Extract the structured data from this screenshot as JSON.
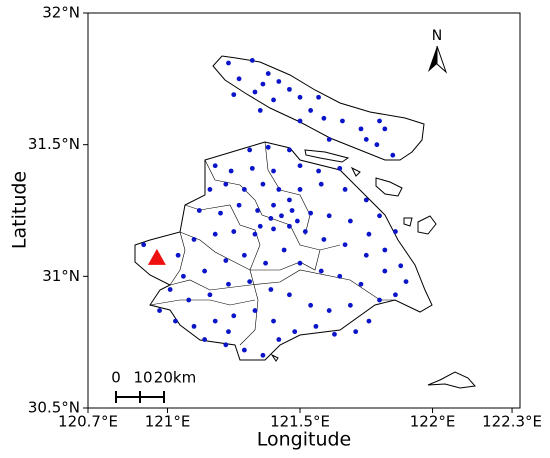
{
  "chart_data": {
    "type": "scatter",
    "xlabel": "Longitude",
    "ylabel": "Latitude",
    "xlim": [
      120.7,
      122.33
    ],
    "ylim": [
      30.5,
      32.0
    ],
    "xticks": [
      {
        "value": 120.7,
        "label": "120.7°E"
      },
      {
        "value": 121.0,
        "label": "121°E"
      },
      {
        "value": 121.5,
        "label": "121.5°E"
      },
      {
        "value": 122.0,
        "label": "122°E"
      },
      {
        "value": 122.3,
        "label": "122.3°E"
      }
    ],
    "yticks": [
      {
        "value": 30.5,
        "label": "30.5°N"
      },
      {
        "value": 31.0,
        "label": "31°N"
      },
      {
        "value": 31.5,
        "label": "31.5°N"
      },
      {
        "value": 32.0,
        "label": "32°N"
      }
    ],
    "color": "#0a14c8",
    "x": [
      121.23,
      121.32,
      121.38,
      121.27,
      121.25,
      121.33,
      121.36,
      121.42,
      121.5,
      121.46,
      121.54,
      121.59,
      121.66,
      121.73,
      121.8,
      121.82,
      121.79,
      121.85,
      121.75,
      121.61,
      121.5,
      121.4,
      121.35,
      121.57,
      121.31,
      121.38,
      121.46,
      121.18,
      121.24,
      121.32,
      121.4,
      121.5,
      121.57,
      121.65,
      121.16,
      121.22,
      121.29,
      121.36,
      121.42,
      121.5,
      121.58,
      121.67,
      121.75,
      121.8,
      121.86,
      121.12,
      121.2,
      121.27,
      121.34,
      121.4,
      121.47,
      121.54,
      121.61,
      121.69,
      121.76,
      121.82,
      121.88,
      121.9,
      121.1,
      121.18,
      121.25,
      121.33,
      121.4,
      121.46,
      121.52,
      121.59,
      121.67,
      121.75,
      121.82,
      121.86,
      120.91,
      120.97,
      121.04,
      121.06,
      121.14,
      121.22,
      121.29,
      121.37,
      121.44,
      121.5,
      121.58,
      121.65,
      121.73,
      121.8,
      121.01,
      121.08,
      121.16,
      121.23,
      121.31,
      121.39,
      121.46,
      121.54,
      121.61,
      121.69,
      121.76,
      120.97,
      121.03,
      121.1,
      121.18,
      121.25,
      121.33,
      121.4,
      121.48,
      121.56,
      121.63,
      121.71,
      121.14,
      121.22,
      121.29,
      121.36,
      121.23,
      121.42,
      121.46,
      121.43,
      121.49,
      121.39,
      121.35
    ],
    "values": [
      31.81,
      31.82,
      31.77,
      31.75,
      31.69,
      31.7,
      31.73,
      31.74,
      31.68,
      31.71,
      31.63,
      31.6,
      31.59,
      31.56,
      31.59,
      31.56,
      31.5,
      31.46,
      31.52,
      31.52,
      31.59,
      31.67,
      31.63,
      31.68,
      31.48,
      31.49,
      31.48,
      31.42,
      31.4,
      31.41,
      31.4,
      31.42,
      31.4,
      31.41,
      31.33,
      31.35,
      31.33,
      31.35,
      31.33,
      31.33,
      31.35,
      31.33,
      31.29,
      31.23,
      31.17,
      31.25,
      31.24,
      31.27,
      31.25,
      31.27,
      31.25,
      31.24,
      31.23,
      31.21,
      31.16,
      31.1,
      31.04,
      30.98,
      31.14,
      31.16,
      31.17,
      31.16,
      31.18,
      31.19,
      31.17,
      31.14,
      31.12,
      31.08,
      31.02,
      30.93,
      31.12,
      31.06,
      31.08,
      31.0,
      31.02,
      31.06,
      31.08,
      31.05,
      31.1,
      31.05,
      31.02,
      31.0,
      30.97,
      30.91,
      30.95,
      30.91,
      30.93,
      30.97,
      30.98,
      30.95,
      30.93,
      30.89,
      30.87,
      30.89,
      30.83,
      30.87,
      30.83,
      30.81,
      30.83,
      30.85,
      30.87,
      30.83,
      30.79,
      30.81,
      30.78,
      30.79,
      30.76,
      30.74,
      30.72,
      30.7,
      30.79,
      30.76,
      31.29,
      31.23,
      31.21,
      31.22,
      31.19
    ],
    "marker": {
      "x": 120.96,
      "y": 31.07,
      "color": "#ee1111",
      "shape": "triangle"
    },
    "north": "N",
    "scale_bar": [
      "0",
      "10",
      "20km"
    ]
  }
}
